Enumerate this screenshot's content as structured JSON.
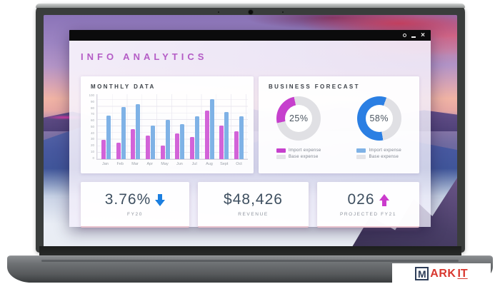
{
  "window": {
    "heading": "INFO ANALYTICS",
    "titlebar_icons": [
      "settings-icon",
      "minimize-icon",
      "close-icon"
    ],
    "close_glyph": "×"
  },
  "chart_data": [
    {
      "type": "bar",
      "title": "MONTHLY DATA",
      "categories": [
        "Jan",
        "Feb",
        "Mar",
        "Apr",
        "May",
        "Jun",
        "Jul",
        "Aug",
        "Sept",
        "Oct"
      ],
      "series": [
        {
          "name": "magenta-series",
          "color": "#d263d8",
          "values": [
            30,
            25,
            46,
            36,
            21,
            40,
            34,
            75,
            52,
            43
          ]
        },
        {
          "name": "blue-series",
          "color": "#7fb2e6",
          "values": [
            67,
            80,
            85,
            52,
            60,
            54,
            66,
            92,
            72,
            66
          ]
        }
      ],
      "xlabel": "",
      "ylabel": "",
      "ylim": [
        0,
        100
      ],
      "yticks": [
        0,
        10,
        20,
        30,
        40,
        50,
        60,
        70,
        80,
        90,
        100
      ],
      "grid": true,
      "legend_position": "none"
    },
    {
      "type": "pie",
      "title": "BUSINESS FORECAST",
      "donuts": [
        {
          "value_label": "25%",
          "pct": 25,
          "color": "#c640cd",
          "track_color": "#e0e0e4",
          "legend": [
            {
              "label": "Import expense",
              "color": "#c640cd"
            },
            {
              "label": "Base expense",
              "color": "#e4e4e8"
            }
          ]
        },
        {
          "value_label": "58%",
          "pct": 58,
          "color": "#2b7fe3",
          "track_color": "#e0e0e4",
          "legend": [
            {
              "label": "Import expense",
              "color": "#7fb2e6"
            },
            {
              "label": "Base expense",
              "color": "#e4e4e8"
            }
          ]
        }
      ]
    }
  ],
  "stats": [
    {
      "value": "3.76%",
      "trend": "down",
      "trend_color": "#1b7fe0",
      "label": "FY20"
    },
    {
      "value": "$48,426",
      "trend": "none",
      "trend_color": "",
      "label": "REVENUE"
    },
    {
      "value": "026",
      "trend": "up",
      "trend_color": "#cb3bcd",
      "label": "PROJECTED FY21"
    }
  ],
  "watermark": {
    "letter": "M",
    "mid": "ARK",
    "end": "IT"
  },
  "colors": {
    "heading": "#b45cc6",
    "stat_text": "#3e4f60",
    "card_accent_line": "#e9c2cd",
    "donut_magenta": "#c640cd",
    "donut_blue": "#2b7fe3",
    "bar_magenta": "#d263d8",
    "bar_blue": "#7fb2e6",
    "logo_red": "#d8372f",
    "logo_navy": "#2e3d58",
    "titlebar": "#0b0b0c"
  }
}
